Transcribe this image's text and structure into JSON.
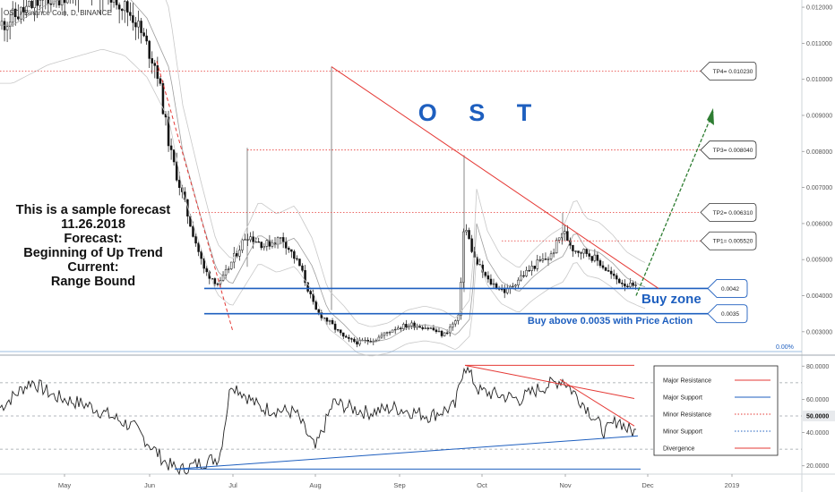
{
  "symbol": "OST / Binance Coin, D, BINANCE",
  "chart_data": {
    "type": "candlestick",
    "title": "O S T",
    "price_axis": [
      "0.012000",
      "0.011000",
      "0.010000",
      "0.009000",
      "0.008000",
      "0.007000",
      "0.006000",
      "0.005000",
      "0.004000",
      "0.003000"
    ],
    "price_range": [
      0.0024,
      0.0122
    ],
    "months": [
      "May",
      "Jun",
      "Jul",
      "Aug",
      "Sep",
      "Oct",
      "Nov",
      "Dec",
      "2019"
    ],
    "annotation_forecast": [
      "This is a sample forecast",
      "11.26.2018",
      "Forecast:",
      "Beginning of Up Trend",
      "Current:",
      "Range Bound"
    ],
    "targets": [
      {
        "label": "TP4= 0.010230",
        "price": 0.01023
      },
      {
        "label": "TP3= 0.008040",
        "price": 0.00804
      },
      {
        "label": "TP2= 0.006310",
        "price": 0.00631
      },
      {
        "label": "TP1= 0.005520",
        "price": 0.00552
      }
    ],
    "zones": [
      {
        "label": "0.0042",
        "price": 0.0042
      },
      {
        "label": "0.0035",
        "price": 0.0035
      }
    ],
    "buy_zone_label": "Buy zone",
    "buy_note": "Buy above 0.0035 with Price Action",
    "fib_label": "0.00%",
    "indicator": {
      "axis": [
        "80.0000",
        "60.0000",
        "40.0000",
        "20.0000"
      ],
      "current_value": "50.0000",
      "range": [
        15,
        85
      ]
    },
    "legend": [
      {
        "label": "Major Resistance",
        "color": "#e53935",
        "style": "solid"
      },
      {
        "label": "Major Support",
        "color": "#1e5fbf",
        "style": "solid"
      },
      {
        "label": "Minor Resistance",
        "color": "#e53935",
        "style": "dotted"
      },
      {
        "label": "Minor Support",
        "color": "#1e5fbf",
        "style": "dotted"
      },
      {
        "label": "Divergence",
        "color": "#e53935",
        "style": "solid"
      }
    ],
    "colors": {
      "bull": "#ffffff",
      "bear": "#111111",
      "resistance": "#e53935",
      "support": "#1e5fbf",
      "title": "#1e5fbf",
      "arrow": "#2e7d32"
    }
  }
}
